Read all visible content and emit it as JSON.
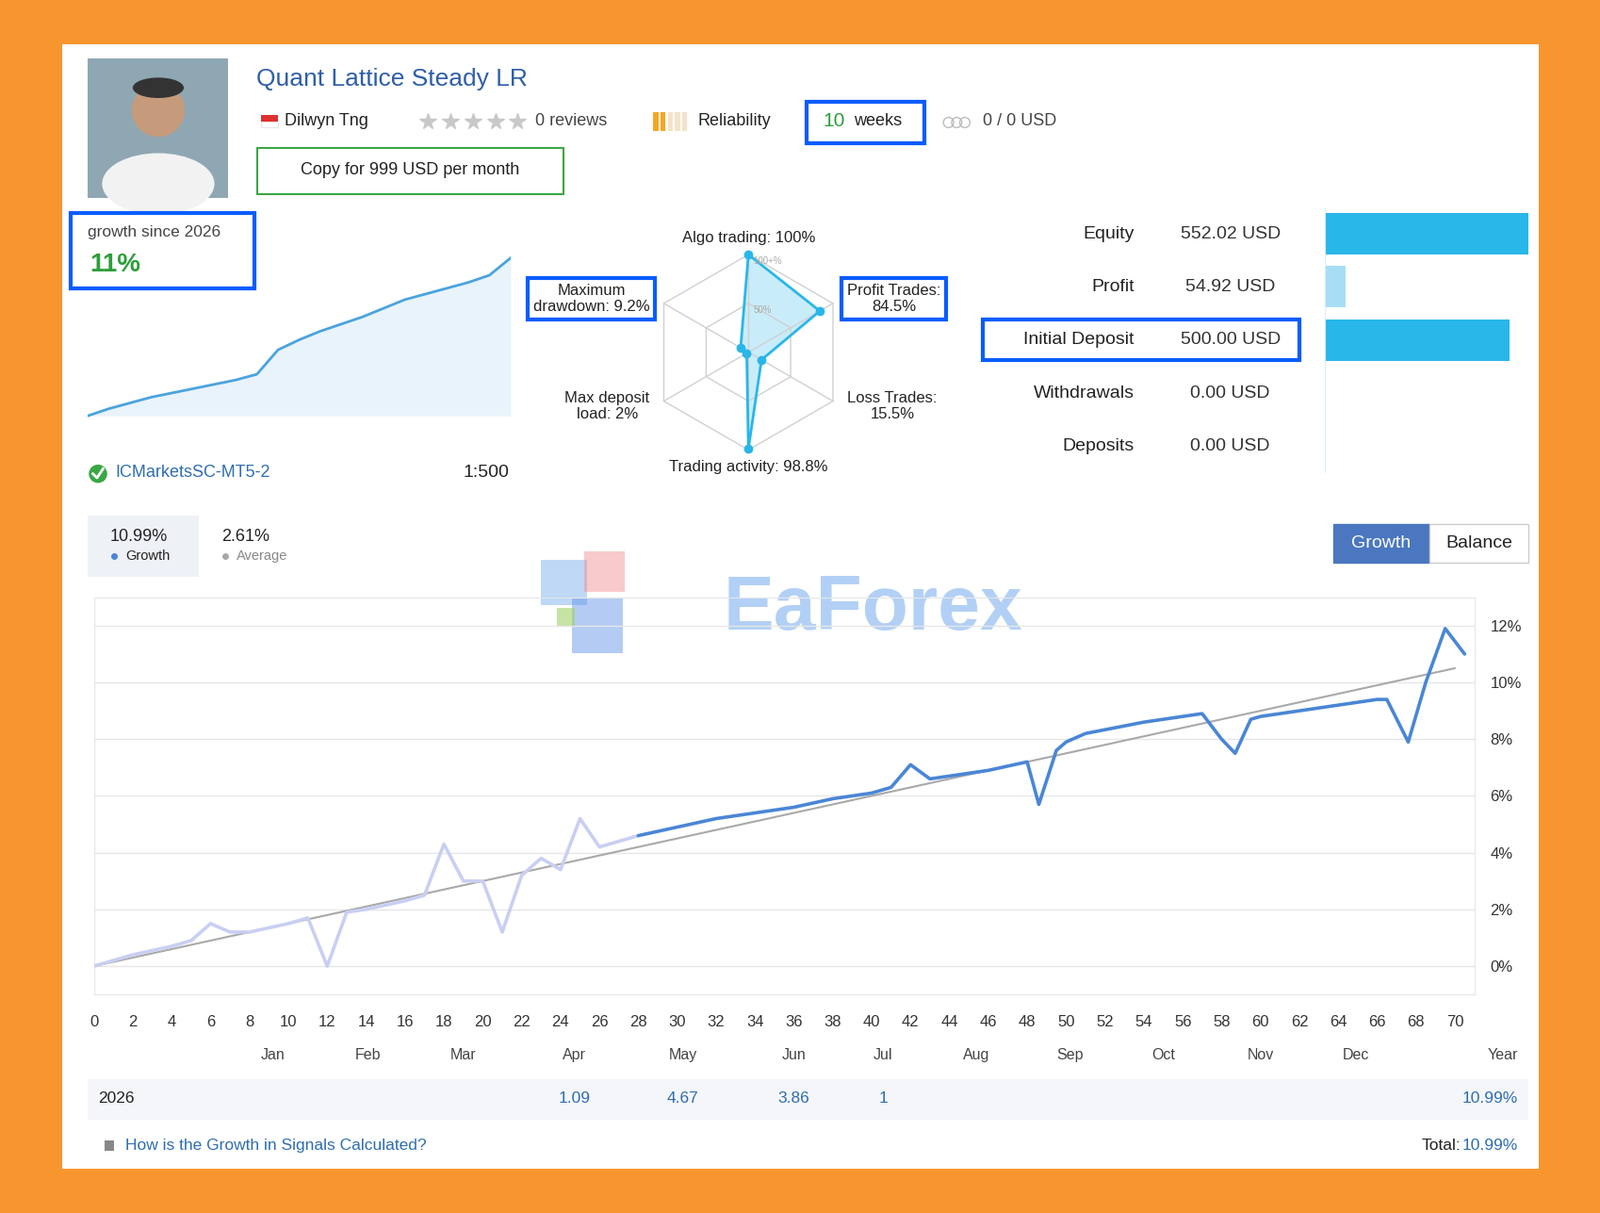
{
  "header": {
    "title": "Quant Lattice Steady LR",
    "author": "Dilwyn Tng",
    "reviews": "0 reviews",
    "reliability": "Reliability",
    "age": {
      "number": "10",
      "unit": "weeks"
    },
    "subscribers": "0 / 0 USD",
    "copy_button": "Copy for 999 USD per month"
  },
  "growth_summary": {
    "caption": "growth since 2026",
    "value": "11%",
    "sparkline": {
      "type": "line",
      "color": "#4aa3df",
      "tick_labels": false,
      "values": [
        0,
        0.5,
        0.9,
        1.3,
        1.6,
        1.9,
        2.2,
        2.5,
        2.9,
        4.6,
        5.3,
        5.9,
        6.4,
        6.9,
        7.5,
        8.1,
        8.5,
        8.9,
        9.3,
        9.8,
        11.0
      ]
    }
  },
  "server": {
    "name": "ICMarketsSC-MT5-2",
    "leverage": "1:500"
  },
  "radar": {
    "type": "radar",
    "color": "#29b6e8",
    "rlim": [
      0,
      100
    ],
    "rticks": [
      {
        "value": 50,
        "label": "50%"
      },
      {
        "value": 100,
        "label": "100+%"
      }
    ],
    "axes": [
      {
        "label": "Algo trading: 100%",
        "value": 100
      },
      {
        "label": "Profit Trades:\n84.5%",
        "value": 84.5
      },
      {
        "label": "Loss Trades:\n15.5%",
        "value": 15.5
      },
      {
        "label": "Trading activity: 98.8%",
        "value": 98.8
      },
      {
        "label": "Max deposit\nload: 2%",
        "value": 2
      },
      {
        "label": "Maximum\ndrawdown: 9.2%",
        "value": 9.2
      }
    ]
  },
  "account": {
    "type": "bar",
    "orientation": "horizontal",
    "xlim": [
      0,
      552.02
    ],
    "colors": [
      "#29b6e8",
      "#a8def5",
      "#29b6e8",
      "#a8def5",
      "#a8def5"
    ],
    "rows": [
      {
        "label": "Equity",
        "value": 552.02,
        "value_label": "552.02 USD"
      },
      {
        "label": "Profit",
        "value": 54.92,
        "value_label": "54.92 USD"
      },
      {
        "label": "Initial Deposit",
        "value": 500.0,
        "value_label": "500.00 USD"
      },
      {
        "label": "Withdrawals",
        "value": 0,
        "value_label": "0.00 USD"
      },
      {
        "label": "Deposits",
        "value": 0,
        "value_label": "0.00 USD"
      }
    ]
  },
  "stats": [
    {
      "value": "10.99%",
      "label": "Growth"
    },
    {
      "value": "2.61%",
      "label": "Average"
    }
  ],
  "tabs": [
    "Growth",
    "Balance"
  ],
  "watermark": "EaForex",
  "chart_data": {
    "type": "line",
    "xlim": [
      0,
      71
    ],
    "xticks": [
      0,
      2,
      4,
      6,
      8,
      10,
      12,
      14,
      16,
      18,
      20,
      22,
      24,
      26,
      28,
      30,
      32,
      34,
      36,
      38,
      40,
      42,
      44,
      46,
      48,
      50,
      52,
      54,
      56,
      58,
      60,
      62,
      64,
      66,
      68,
      70
    ],
    "ylim": [
      -1,
      13
    ],
    "yticks": [
      {
        "value": 0,
        "label": "0%"
      },
      {
        "value": 2,
        "label": "2%"
      },
      {
        "value": 4,
        "label": "4%"
      },
      {
        "value": 6,
        "label": "6%"
      },
      {
        "value": 8,
        "label": "8%"
      },
      {
        "value": 10,
        "label": "10%"
      },
      {
        "value": 12,
        "label": "12%"
      }
    ],
    "grid": "y",
    "month_labels": [
      {
        "value": 9.2,
        "label": "Jan"
      },
      {
        "value": 14.1,
        "label": "Feb"
      },
      {
        "value": 19.0,
        "label": "Mar"
      },
      {
        "value": 24.7,
        "label": "Apr"
      },
      {
        "value": 30.3,
        "label": "May"
      },
      {
        "value": 36.0,
        "label": "Jun"
      },
      {
        "value": 40.6,
        "label": "Jul"
      },
      {
        "value": 45.4,
        "label": "Aug"
      },
      {
        "value": 50.2,
        "label": "Sep"
      },
      {
        "value": 55.0,
        "label": "Oct"
      },
      {
        "value": 60.0,
        "label": "Nov"
      },
      {
        "value": 64.9,
        "label": "Dec"
      }
    ],
    "year_label": "Year",
    "series": [
      {
        "color": "#a9a9a9",
        "x": [
          0,
          70
        ],
        "values": [
          0,
          10.5
        ]
      },
      {
        "color": "#c9cff2",
        "x": [
          0,
          2,
          4,
          5,
          6,
          7,
          8,
          10,
          11,
          12,
          13,
          14,
          16,
          17,
          18,
          19,
          20,
          21,
          22,
          23,
          24,
          25,
          26,
          27,
          28
        ],
        "values": [
          0,
          0.4,
          0.7,
          0.9,
          1.5,
          1.2,
          1.2,
          1.5,
          1.7,
          0.0,
          1.9,
          2.0,
          2.3,
          2.5,
          4.3,
          3.0,
          3.0,
          1.2,
          3.2,
          3.8,
          3.4,
          5.2,
          4.2,
          4.4,
          4.6
        ]
      },
      {
        "color": "#4a86d6",
        "x": [
          28,
          30,
          32,
          34,
          36,
          38,
          40,
          41,
          42,
          43,
          44,
          46,
          48,
          48.6,
          49.5,
          50,
          51,
          54,
          56,
          57,
          58,
          58.7,
          59.5,
          60,
          62,
          64,
          66,
          66.5,
          67.6,
          68.5,
          69.5,
          70.5
        ],
        "values": [
          4.6,
          4.9,
          5.2,
          5.4,
          5.6,
          5.9,
          6.1,
          6.3,
          7.1,
          6.6,
          6.7,
          6.9,
          7.2,
          5.7,
          7.6,
          7.9,
          8.2,
          8.6,
          8.8,
          8.9,
          8.0,
          7.5,
          8.7,
          8.8,
          9.0,
          9.2,
          9.4,
          9.4,
          7.9,
          10.0,
          11.9,
          11.0
        ]
      }
    ]
  },
  "year_table": {
    "year": "2026",
    "cells": [
      {
        "month": "Apr",
        "value": "1.09"
      },
      {
        "month": "May",
        "value": "4.67"
      },
      {
        "month": "Jun",
        "value": "3.86"
      },
      {
        "month": "Jul",
        "value": "1"
      }
    ],
    "year_total": "10.99%"
  },
  "footer": {
    "link": "How is the Growth in Signals Calculated?",
    "total_label": "Total:",
    "total": "10.99%"
  }
}
